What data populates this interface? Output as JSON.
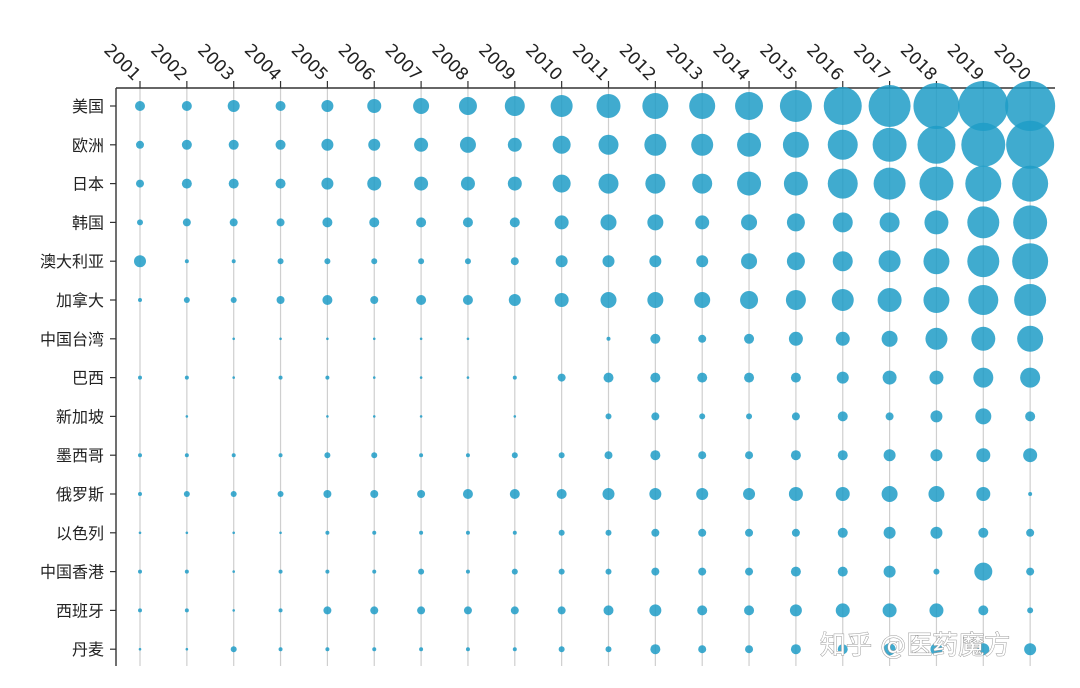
{
  "chart_data": {
    "type": "scatter",
    "title": "",
    "xlabel": "",
    "ylabel": "",
    "x": [
      "2001",
      "2002",
      "2003",
      "2004",
      "2005",
      "2006",
      "2007",
      "2008",
      "2009",
      "2010",
      "2011",
      "2012",
      "2013",
      "2014",
      "2015",
      "2016",
      "2017",
      "2018",
      "2019",
      "2020"
    ],
    "categories": [
      "美国",
      "欧洲",
      "日本",
      "韩国",
      "澳大利亚",
      "加拿大",
      "中国台湾",
      "巴西",
      "新加坡",
      "墨西哥",
      "俄罗斯",
      "以色列",
      "中国香港",
      "西班牙",
      "丹麦"
    ],
    "size_scale": "relative bubble radius (0–24)",
    "values": [
      [
        5,
        5,
        6,
        5,
        6,
        7,
        8,
        9,
        10,
        11,
        12,
        13,
        13,
        14,
        16,
        19,
        21,
        23,
        25,
        25
      ],
      [
        4,
        5,
        5,
        5,
        6,
        6,
        7,
        8,
        7,
        9,
        10,
        11,
        11,
        12,
        13,
        15,
        17,
        19,
        22,
        24
      ],
      [
        4,
        5,
        5,
        5,
        6,
        7,
        7,
        7,
        7,
        9,
        10,
        10,
        10,
        12,
        12,
        15,
        16,
        17,
        18,
        18
      ],
      [
        3,
        4,
        4,
        4,
        5,
        5,
        5,
        5,
        5,
        7,
        8,
        8,
        7,
        8,
        9,
        10,
        10,
        12,
        16,
        17
      ],
      [
        6,
        2,
        2,
        3,
        3,
        3,
        3,
        3,
        4,
        6,
        6,
        6,
        6,
        8,
        9,
        10,
        11,
        13,
        16,
        18
      ],
      [
        2,
        3,
        3,
        4,
        5,
        4,
        5,
        5,
        6,
        7,
        8,
        8,
        8,
        9,
        10,
        11,
        12,
        13,
        15,
        16
      ],
      [
        0,
        0,
        1,
        1,
        1,
        1,
        1,
        1,
        0,
        0,
        2,
        5,
        4,
        5,
        7,
        7,
        8,
        11,
        12,
        13
      ],
      [
        2,
        2,
        1,
        2,
        2,
        1,
        1,
        1,
        2,
        4,
        5,
        5,
        5,
        5,
        5,
        6,
        7,
        7,
        10,
        10
      ],
      [
        0,
        1,
        0,
        0,
        1,
        1,
        1,
        0,
        1,
        0,
        3,
        4,
        3,
        3,
        4,
        5,
        4,
        6,
        8,
        5
      ],
      [
        2,
        2,
        2,
        2,
        3,
        3,
        2,
        2,
        3,
        3,
        4,
        5,
        4,
        4,
        5,
        5,
        6,
        6,
        7,
        7
      ],
      [
        2,
        3,
        3,
        3,
        4,
        4,
        4,
        5,
        5,
        5,
        6,
        6,
        6,
        6,
        7,
        7,
        8,
        8,
        7,
        2
      ],
      [
        1,
        1,
        1,
        1,
        2,
        2,
        2,
        2,
        2,
        3,
        3,
        4,
        4,
        4,
        4,
        5,
        6,
        6,
        5,
        4
      ],
      [
        2,
        2,
        1,
        2,
        2,
        2,
        3,
        2,
        3,
        3,
        3,
        4,
        4,
        4,
        5,
        5,
        6,
        3,
        9,
        4
      ],
      [
        2,
        2,
        1,
        2,
        4,
        4,
        4,
        4,
        4,
        4,
        5,
        6,
        5,
        5,
        6,
        7,
        7,
        7,
        5,
        3
      ],
      [
        1,
        1,
        3,
        2,
        2,
        2,
        2,
        2,
        2,
        3,
        3,
        5,
        4,
        4,
        5,
        5,
        6,
        6,
        6,
        6
      ]
    ]
  },
  "watermark": "知乎 @医药魔方"
}
